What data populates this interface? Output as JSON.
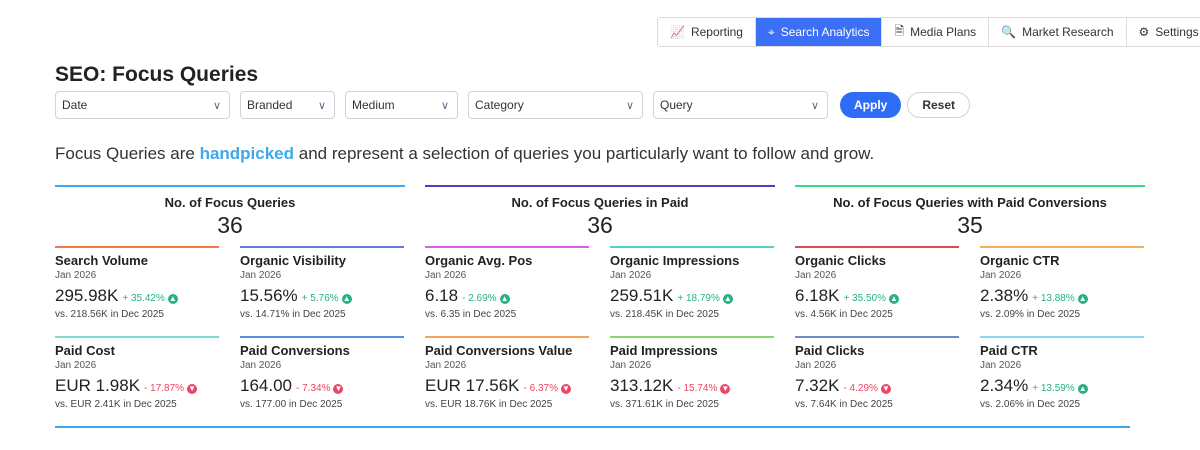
{
  "topnav": [
    {
      "label": "Reporting",
      "icon": "chart-icon",
      "glyph": "📈",
      "active": false
    },
    {
      "label": "Search Analytics",
      "icon": "crosshair-icon",
      "glyph": "⌖",
      "active": true
    },
    {
      "label": "Media Plans",
      "icon": "document-icon",
      "glyph": "🗎",
      "active": false
    },
    {
      "label": "Market Research",
      "icon": "magnifier-icon",
      "glyph": "🔍",
      "active": false
    },
    {
      "label": "Settings",
      "icon": "gear-icon",
      "glyph": "⚙",
      "active": false
    }
  ],
  "page_title": "SEO: Focus Queries",
  "filters": {
    "date": "Date",
    "branded": "Branded",
    "medium": "Medium",
    "category": "Category",
    "query": "Query",
    "apply": "Apply",
    "reset": "Reset"
  },
  "intro": {
    "before": "Focus Queries are ",
    "highlight": "handpicked",
    "after": " and represent a selection of queries you particularly want to follow and grow."
  },
  "colors": {
    "accent": "#3b6ff5",
    "up": "#24b47e",
    "down": "#ee4466",
    "highlight": "#42a8ea"
  },
  "groups": [
    {
      "title": "No. of Focus Queries",
      "value": "36",
      "color": "#3aa7f0",
      "metrics": [
        {
          "title": "Search Volume",
          "date": "Jan 2026",
          "value": "295.98K",
          "change": "+ 35.42%",
          "dir": "up",
          "comparison": "vs. 218.56K in Dec 2025",
          "color": "#f07a4a"
        },
        {
          "title": "Organic Visibility",
          "date": "Jan 2026",
          "value": "15.56%",
          "change": "+ 5.76%",
          "dir": "up",
          "comparison": "vs. 14.71% in Dec 2025",
          "color": "#5a7fd6"
        },
        {
          "title": "Paid Cost",
          "date": "Jan 2026",
          "value": "EUR 1.98K",
          "change": "- 17.87%",
          "dir": "down",
          "comparison": "vs. EUR 2.41K in Dec 2025",
          "color": "#7ed9d0"
        },
        {
          "title": "Paid Conversions",
          "date": "Jan 2026",
          "value": "164.00",
          "change": "- 7.34%",
          "dir": "down",
          "comparison": "vs. 177.00 in Dec 2025",
          "color": "#5a8fe0"
        }
      ]
    },
    {
      "title": "No. of Focus Queries in Paid",
      "value": "36",
      "color": "#4a3fc0",
      "metrics": [
        {
          "title": "Organic Avg. Pos",
          "date": "Jan 2026",
          "value": "6.18",
          "change": "- 2.69%",
          "dir": "up",
          "comparison": "vs. 6.35 in Dec 2025",
          "color": "#d663e6"
        },
        {
          "title": "Organic Impressions",
          "date": "Jan 2026",
          "value": "259.51K",
          "change": "+ 18.79%",
          "dir": "up",
          "comparison": "vs. 218.45K in Dec 2025",
          "color": "#4fd4c4"
        },
        {
          "title": "Paid Conversions Value",
          "date": "Jan 2026",
          "value": "EUR 17.56K",
          "change": "- 6.37%",
          "dir": "down",
          "comparison": "vs. EUR 18.76K in Dec 2025",
          "color": "#f5a25a"
        },
        {
          "title": "Paid Impressions",
          "date": "Jan 2026",
          "value": "313.12K",
          "change": "- 15.74%",
          "dir": "down",
          "comparison": "vs. 371.61K in Dec 2025",
          "color": "#8ad66a"
        }
      ]
    },
    {
      "title": "No. of Focus Queries with Paid Conversions",
      "value": "35",
      "color": "#3ad98a",
      "metrics": [
        {
          "title": "Organic Clicks",
          "date": "Jan 2026",
          "value": "6.18K",
          "change": "+ 35.50%",
          "dir": "up",
          "comparison": "vs. 4.56K in Dec 2025",
          "color": "#e04a4a"
        },
        {
          "title": "Organic CTR",
          "date": "Jan 2026",
          "value": "2.38%",
          "change": "+ 13.88%",
          "dir": "up",
          "comparison": "vs. 2.09% in Dec 2025",
          "color": "#f5b05a"
        },
        {
          "title": "Paid Clicks",
          "date": "Jan 2026",
          "value": "7.32K",
          "change": "- 4.29%",
          "dir": "down",
          "comparison": "vs. 7.64K in Dec 2025",
          "color": "#6a8fc0"
        },
        {
          "title": "Paid CTR",
          "date": "Jan 2026",
          "value": "2.34%",
          "change": "+ 13.59%",
          "dir": "up",
          "comparison": "vs. 2.06% in Dec 2025",
          "color": "#8ad6f0"
        }
      ]
    }
  ]
}
